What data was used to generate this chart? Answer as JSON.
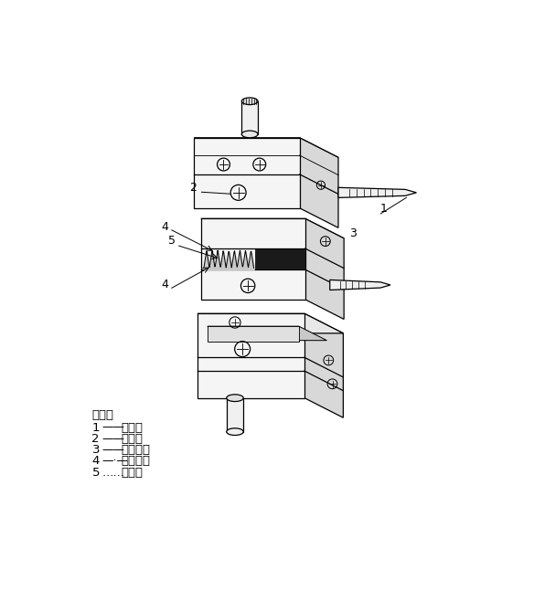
{
  "background_color": "#ffffff",
  "line_color": "#000000",
  "lw": 0.9,
  "fc_front": "#f5f5f5",
  "fc_top": "#e8e8e8",
  "fc_right": "#d8d8d8",
  "fc_dark": "#222222",
  "legend": [
    [
      "说明：",
      "",
      ""
    ],
    [
      "1",
      "——",
      "插销；"
    ],
    [
      "2",
      "——",
      "插孔；"
    ],
    [
      "3",
      "——",
      "金属块；"
    ],
    [
      "4",
      "—·—",
      "粘结剂；"
    ],
    [
      "5",
      "……",
      "试样。"
    ]
  ]
}
